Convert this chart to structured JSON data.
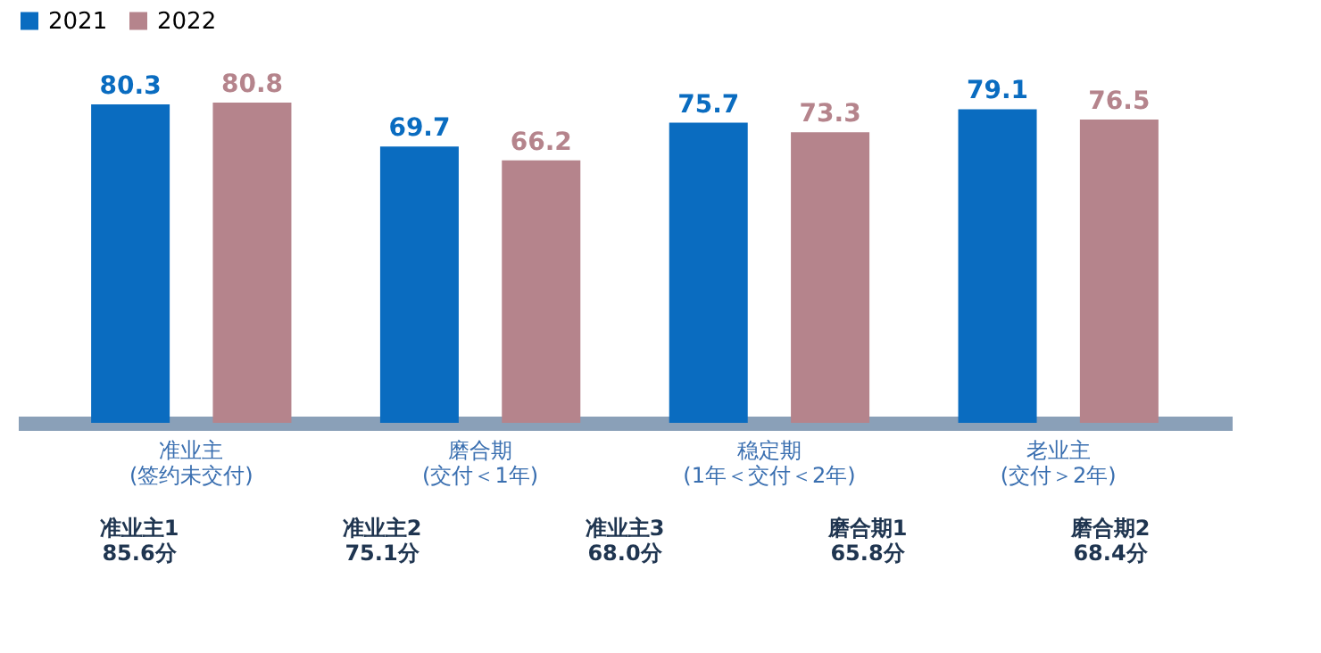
{
  "chart_data": {
    "type": "bar",
    "categories": [
      "准业主\n(签约未交付)",
      "磨合期\n(交付＜1年)",
      "稳定期\n(1年＜交付＜2年)",
      "老业主\n(交付＞2年)"
    ],
    "series": [
      {
        "name": "2021",
        "color": "#0a6cc0",
        "values": [
          80.3,
          69.7,
          75.7,
          79.1
        ]
      },
      {
        "name": "2022",
        "color": "#b5848c",
        "values": [
          80.8,
          66.2,
          73.3,
          76.5
        ]
      }
    ],
    "data_labels": true,
    "legend": "top",
    "grid": false,
    "annotations": [
      "准业主1\n85.6分",
      "准业主2\n75.1分",
      "准业主3\n68.0分",
      "磨合期1\n65.8分",
      "磨合期2\n68.4分"
    ]
  }
}
